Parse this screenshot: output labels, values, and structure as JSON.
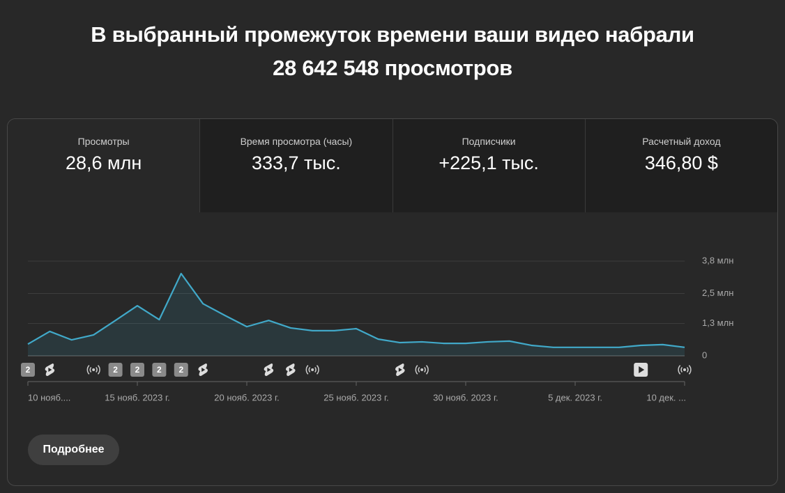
{
  "header": {
    "title_line1": "В выбранный промежуток времени ваши видео набрали",
    "title_line2": "28 642 548 просмотров"
  },
  "metrics": [
    {
      "label": "Просмотры",
      "value": "28,6 млн"
    },
    {
      "label": "Время просмотра (часы)",
      "value": "333,7 тыс."
    },
    {
      "label": "Подписчики",
      "value": "+225,1 тыс."
    },
    {
      "label": "Расчетный доход",
      "value": "346,80 $"
    }
  ],
  "chart_data": {
    "type": "line",
    "x": [
      "2023-11-10",
      "2023-11-11",
      "2023-11-12",
      "2023-11-13",
      "2023-11-14",
      "2023-11-15",
      "2023-11-16",
      "2023-11-17",
      "2023-11-18",
      "2023-11-19",
      "2023-11-20",
      "2023-11-21",
      "2023-11-22",
      "2023-11-23",
      "2023-11-24",
      "2023-11-25",
      "2023-11-26",
      "2023-11-27",
      "2023-11-28",
      "2023-11-29",
      "2023-11-30",
      "2023-12-01",
      "2023-12-02",
      "2023-12-03",
      "2023-12-04",
      "2023-12-05",
      "2023-12-06",
      "2023-12-07",
      "2023-12-08",
      "2023-12-09",
      "2023-12-10"
    ],
    "series": [
      {
        "name": "Просмотры",
        "color": "#41a9c9",
        "values": [
          0.47,
          0.98,
          0.64,
          0.84,
          1.42,
          2.01,
          1.45,
          3.3,
          2.09,
          1.62,
          1.17,
          1.42,
          1.12,
          1.01,
          1.01,
          1.09,
          0.67,
          0.53,
          0.56,
          0.5,
          0.5,
          0.56,
          0.59,
          0.42,
          0.34,
          0.34,
          0.34,
          0.34,
          0.42,
          0.45,
          0.34
        ]
      }
    ],
    "ylim": [
      0,
      3.8
    ],
    "yticks": [
      0,
      {
        "value": 1.3,
        "label": "1,3 млн"
      },
      {
        "value": 2.5,
        "label": "2,5 млн"
      },
      {
        "value": 3.8,
        "label": "3,8 млн"
      }
    ],
    "xticks": [
      {
        "value": "2023-11-10",
        "label": "10 нояб...."
      },
      {
        "value": "2023-11-15",
        "label": "15 нояб. 2023 г."
      },
      {
        "value": "2023-11-20",
        "label": "20 нояб. 2023 г."
      },
      {
        "value": "2023-11-25",
        "label": "25 нояб. 2023 г."
      },
      {
        "value": "2023-11-30",
        "label": "30 нояб. 2023 г."
      },
      {
        "value": "2023-12-05",
        "label": "5 дек. 2023 г."
      },
      {
        "value": "2023-12-10",
        "label": "10 дек. ..."
      }
    ],
    "grid": true,
    "events": [
      {
        "date": "2023-11-10",
        "kind": "badge",
        "label": "2"
      },
      {
        "date": "2023-11-11",
        "kind": "short"
      },
      {
        "date": "2023-11-13",
        "kind": "live"
      },
      {
        "date": "2023-11-14",
        "kind": "badge",
        "label": "2"
      },
      {
        "date": "2023-11-15",
        "kind": "badge",
        "label": "2"
      },
      {
        "date": "2023-11-16",
        "kind": "badge",
        "label": "2"
      },
      {
        "date": "2023-11-17",
        "kind": "badge",
        "label": "2"
      },
      {
        "date": "2023-11-18",
        "kind": "short"
      },
      {
        "date": "2023-11-21",
        "kind": "short"
      },
      {
        "date": "2023-11-22",
        "kind": "short"
      },
      {
        "date": "2023-11-23",
        "kind": "live"
      },
      {
        "date": "2023-11-27",
        "kind": "short"
      },
      {
        "date": "2023-11-28",
        "kind": "live"
      },
      {
        "date": "2023-12-08",
        "kind": "video"
      },
      {
        "date": "2023-12-10",
        "kind": "live"
      }
    ]
  },
  "button": "Подробнее"
}
